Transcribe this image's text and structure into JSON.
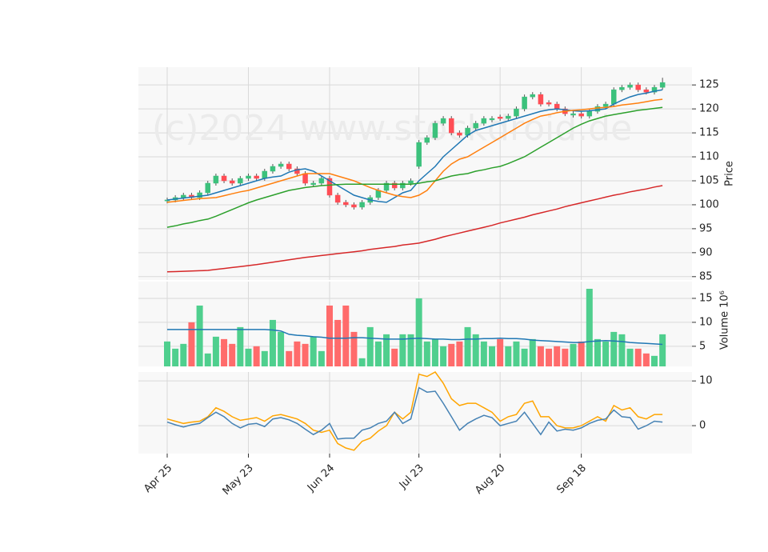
{
  "chart_data": [
    {
      "type": "candlestick",
      "ylabel": "Price",
      "watermark": "(c)2024 www.stockdroid.de",
      "categories": [
        "Apr 25",
        null,
        null,
        null,
        null,
        null,
        null,
        null,
        null,
        null,
        "May 23",
        null,
        null,
        null,
        null,
        null,
        null,
        null,
        null,
        null,
        "Jun 24",
        null,
        null,
        null,
        null,
        null,
        null,
        null,
        null,
        null,
        null,
        "Jul 23",
        null,
        null,
        null,
        null,
        null,
        null,
        null,
        null,
        null,
        "Aug 20",
        null,
        null,
        null,
        null,
        null,
        null,
        null,
        null,
        null,
        "Sep 18",
        null,
        null,
        null,
        null,
        null,
        null,
        null,
        null,
        null,
        null
      ],
      "open": [
        100.8,
        101,
        101.5,
        102,
        101.5,
        102.5,
        104.5,
        106,
        105,
        104.5,
        105.5,
        106,
        105.5,
        107,
        108,
        108.5,
        107.5,
        106.5,
        104.2,
        104.5,
        105.5,
        102,
        100.5,
        100,
        99.5,
        100.5,
        101.5,
        103,
        104.5,
        103.5,
        104.5,
        108,
        113,
        114,
        117,
        118,
        115,
        114.5,
        116,
        117,
        117.7,
        118.3,
        118,
        118.5,
        120,
        122.5,
        123,
        121.3,
        121,
        120,
        118.7,
        119,
        118.5,
        119.5,
        120.5,
        121,
        124,
        124.5,
        125,
        124,
        123.5,
        124.5
      ],
      "high": [
        101.5,
        102,
        102.5,
        102.5,
        103,
        105,
        106.5,
        106.5,
        105.5,
        106,
        106.5,
        106.5,
        107.5,
        108.5,
        109,
        109,
        108,
        107,
        105,
        106,
        106,
        102.5,
        101,
        100.5,
        101,
        102,
        103.5,
        105,
        105,
        105,
        105.5,
        113.5,
        114.5,
        117.5,
        118.5,
        118.5,
        115.5,
        116.5,
        117.5,
        118.5,
        118.5,
        118.8,
        119,
        120.5,
        123,
        123.5,
        123.5,
        121.8,
        121.5,
        120.5,
        119.5,
        119.5,
        120,
        121,
        121.5,
        124.5,
        125,
        125.5,
        125.5,
        124.5,
        125,
        126.5
      ],
      "low": [
        100.3,
        100.5,
        101,
        101,
        101,
        102,
        104,
        104.5,
        104,
        104,
        105,
        105,
        105,
        106.5,
        107.5,
        107,
        106,
        104,
        103.7,
        104,
        101.5,
        100,
        99.5,
        99,
        99,
        100,
        101,
        102.5,
        103,
        103,
        104,
        107.5,
        112.5,
        113.5,
        116.5,
        114.5,
        114,
        114,
        115.5,
        116.5,
        117.2,
        117.5,
        117.5,
        118,
        119.5,
        122,
        120.5,
        120.5,
        119.5,
        118.5,
        118.2,
        118,
        118,
        119,
        120,
        120.5,
        123.5,
        124,
        123.5,
        123,
        123,
        124
      ],
      "close": [
        101,
        101.5,
        102,
        101.5,
        102.5,
        104.5,
        106,
        105,
        104.5,
        105.5,
        106,
        105.5,
        107,
        108,
        108.5,
        107.5,
        106.5,
        104.5,
        104.5,
        105.5,
        102,
        100.5,
        100,
        99.5,
        100.5,
        101.5,
        103,
        104.5,
        103.5,
        104.5,
        105,
        113,
        114,
        117,
        118,
        115,
        114.5,
        116,
        117,
        118,
        118,
        118,
        118.5,
        120,
        122.5,
        123,
        121,
        121,
        120,
        119,
        119,
        118.5,
        119.5,
        120.5,
        121,
        124,
        124.5,
        125,
        124,
        123.5,
        124.5,
        125.5
      ],
      "up_color": "#3cc17c",
      "down_color": "#ff4d55",
      "series": [
        {
          "color": "#1f77b4",
          "values": [
            101,
            101.2,
            101.4,
            101.6,
            101.8,
            102,
            102.5,
            103,
            103.5,
            104,
            104.5,
            105,
            105.5,
            105.8,
            106,
            106.8,
            107.3,
            107.5,
            107,
            106,
            105,
            104,
            103,
            102,
            101.5,
            101,
            100.7,
            100.5,
            101.5,
            102.5,
            103,
            105,
            106.5,
            108,
            110,
            111.5,
            113,
            114.5,
            115.5,
            116,
            116.5,
            117,
            117.5,
            118,
            118.5,
            119,
            119.5,
            119.8,
            120,
            119.8,
            119.6,
            119.5,
            119.6,
            119.8,
            120,
            121,
            121.8,
            122.5,
            123,
            123.3,
            123.7,
            124
          ]
        },
        {
          "color": "#ff7f0e",
          "values": [
            100.5,
            100.7,
            100.9,
            101.1,
            101.3,
            101.4,
            101.5,
            101.9,
            102.3,
            102.7,
            103,
            103.5,
            104,
            104.5,
            105,
            105.5,
            106,
            106.5,
            106.5,
            106.5,
            106.5,
            106,
            105.5,
            105,
            104.3,
            103.6,
            103,
            102.5,
            102,
            101.7,
            101.5,
            102,
            103,
            105,
            107,
            108.5,
            109.5,
            110,
            111,
            112,
            113,
            114,
            115,
            116,
            117,
            117.8,
            118.5,
            118.8,
            119.2,
            119.5,
            119.7,
            119.8,
            120,
            120.2,
            120.3,
            120.5,
            120.8,
            121,
            121.2,
            121.5,
            121.8,
            122
          ]
        },
        {
          "color": "#2ca02c",
          "values": [
            95.3,
            95.6,
            96,
            96.3,
            96.7,
            97,
            97.6,
            98.3,
            99,
            99.7,
            100.4,
            101,
            101.5,
            102,
            102.5,
            103,
            103.3,
            103.6,
            103.8,
            104,
            104.1,
            104.2,
            104.3,
            104.3,
            104.3,
            104.3,
            104.3,
            104.3,
            104.3,
            104.3,
            104.3,
            104.5,
            104.8,
            105,
            105.5,
            106,
            106.3,
            106.5,
            107,
            107.3,
            107.7,
            108,
            108.6,
            109.3,
            110,
            111,
            112,
            113,
            114,
            115,
            116,
            116.8,
            117.5,
            118,
            118.5,
            118.8,
            119.1,
            119.4,
            119.7,
            119.9,
            120.1,
            120.3
          ]
        },
        {
          "color": "#d62728",
          "values": [
            86,
            86.06,
            86.12,
            86.18,
            86.24,
            86.3,
            86.5,
            86.7,
            86.9,
            87.1,
            87.3,
            87.5,
            87.75,
            88,
            88.25,
            88.5,
            88.75,
            89,
            89.2,
            89.4,
            89.6,
            89.8,
            90,
            90.2,
            90.4,
            90.7,
            90.9,
            91.1,
            91.3,
            91.6,
            91.8,
            92,
            92.4,
            92.8,
            93.3,
            93.7,
            94.1,
            94.5,
            94.9,
            95.3,
            95.7,
            96.2,
            96.6,
            97,
            97.4,
            97.9,
            98.3,
            98.7,
            99.1,
            99.6,
            100,
            100.4,
            100.8,
            101.2,
            101.6,
            102,
            102.3,
            102.7,
            103,
            103.3,
            103.7,
            104
          ]
        }
      ],
      "ylim": [
        84.3,
        128.7
      ],
      "yticks": [
        85,
        90,
        95,
        100,
        105,
        110,
        115,
        120,
        125
      ],
      "grid": true
    },
    {
      "type": "bar",
      "ylabel": "Volume",
      "offset_label": "10⁶",
      "values": [
        6,
        4.5,
        5.5,
        10,
        13.5,
        3.5,
        7,
        6.5,
        5.5,
        9,
        4.5,
        5,
        4,
        10.5,
        8,
        4,
        6,
        5.5,
        7,
        4,
        13.5,
        10.5,
        13.5,
        8,
        2.5,
        9,
        6,
        7.5,
        4.5,
        7.5,
        7.5,
        15,
        6,
        6.5,
        5,
        5.5,
        6,
        9,
        7.5,
        6,
        5,
        6.5,
        5,
        6,
        4.5,
        6.5,
        5,
        4.5,
        5,
        4.5,
        5.5,
        6,
        17,
        6.5,
        6,
        8,
        7.5,
        4.5,
        4.5,
        3.5,
        3,
        7.5
      ],
      "up_color": "#4fcf8e",
      "down_color": "#ff6b6b",
      "series": [
        {
          "color": "#1f77b4",
          "values": [
            8.5,
            8.5,
            8.5,
            8.5,
            8.5,
            8.5,
            8.5,
            8.5,
            8.5,
            8.5,
            8.5,
            8.5,
            8.5,
            8.4,
            8.2,
            7.5,
            7.3,
            7.2,
            7,
            6.9,
            6.7,
            6.7,
            6.7,
            6.8,
            6.8,
            6.7,
            6.6,
            6.5,
            6.5,
            6.5,
            6.6,
            6.7,
            6.6,
            6.5,
            6.5,
            6.4,
            6.4,
            6.5,
            6.5,
            6.6,
            6.6,
            6.7,
            6.6,
            6.6,
            6.5,
            6.3,
            6.2,
            6.1,
            6,
            5.9,
            5.8,
            5.8,
            6,
            6.1,
            6.2,
            6.1,
            6,
            5.8,
            5.7,
            5.6,
            5.5,
            5.4
          ]
        }
      ],
      "ylim": [
        0.8,
        18.5
      ],
      "yticks": [
        5,
        10,
        15
      ],
      "grid": true
    },
    {
      "type": "line",
      "series": [
        {
          "color": "#ffa500",
          "values": [
            1.5,
            1,
            0.5,
            0.8,
            1,
            2,
            4,
            3.2,
            2,
            1.2,
            1.5,
            1.8,
            1,
            2.2,
            2.5,
            2,
            1.5,
            0.5,
            -1,
            -1.5,
            -1,
            -4,
            -5,
            -5.5,
            -3.5,
            -2.8,
            -1.2,
            0,
            3,
            1.5,
            3,
            11.5,
            11,
            12,
            9.5,
            6,
            4.5,
            5,
            5,
            4,
            3,
            1,
            2,
            2.5,
            5,
            5.5,
            2,
            2,
            0,
            -0.5,
            -0.5,
            0,
            1,
            2,
            1,
            4.5,
            3.5,
            4,
            2,
            1.5,
            2.5,
            2.5
          ]
        },
        {
          "color": "#4682b4",
          "values": [
            0.8,
            0.2,
            -0.3,
            0.2,
            0.5,
            1.8,
            3,
            2,
            0.5,
            -0.5,
            0.3,
            0.5,
            -0.2,
            1.5,
            1.8,
            1.3,
            0.5,
            -0.8,
            -2,
            -1,
            0.5,
            -3,
            -2.8,
            -2.8,
            -1,
            -0.5,
            0.5,
            1,
            3,
            0.5,
            1.5,
            8.5,
            7.5,
            7.7,
            5,
            2,
            -1,
            0.5,
            1.5,
            2.3,
            1.8,
            0,
            0.5,
            1,
            3,
            0.5,
            -2,
            0.8,
            -1.2,
            -0.8,
            -1,
            -0.5,
            0.5,
            1.2,
            1.5,
            3.5,
            2,
            1.8,
            -0.8,
            0,
            1,
            0.8
          ]
        }
      ],
      "ylim": [
        -6.25,
        12
      ],
      "yticks": [
        0,
        10
      ],
      "grid": true
    }
  ]
}
